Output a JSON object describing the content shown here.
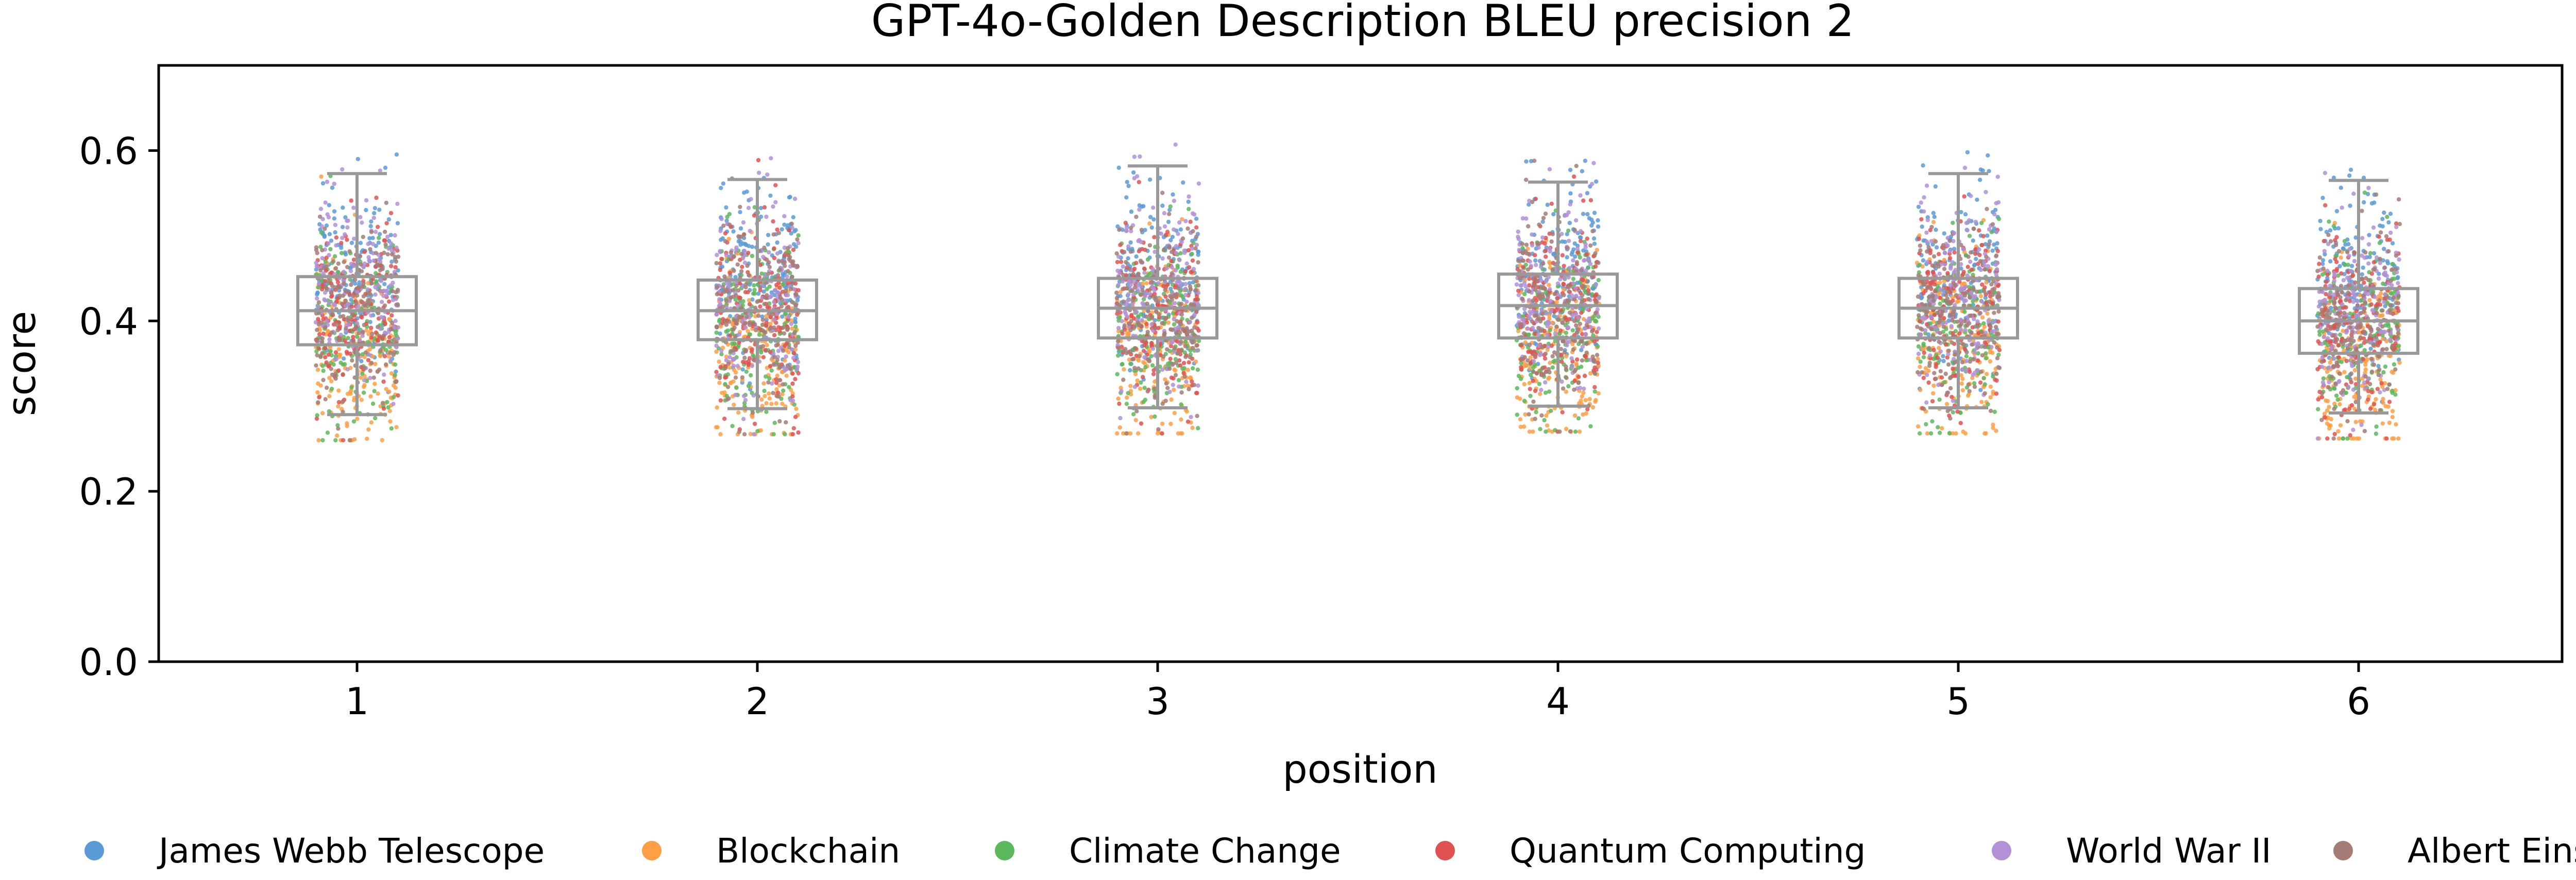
{
  "chart_data": {
    "type": "box-strip",
    "title": "GPT-4o-Golden Description BLEU precision 2",
    "xlabel": "position",
    "ylabel": "score",
    "categories": [
      "1",
      "2",
      "3",
      "4",
      "5",
      "6"
    ],
    "ylim": [
      0,
      0.7
    ],
    "yticks": [
      0.0,
      0.2,
      0.4,
      0.6
    ],
    "ytick_labels": [
      "0.0",
      "0.2",
      "0.4",
      "0.6"
    ],
    "grid": false,
    "legend_position": "bottom",
    "boxes": [
      {
        "category": "1",
        "whisker_low": 0.29,
        "q1": 0.372,
        "median": 0.412,
        "q3": 0.452,
        "whisker_high": 0.573
      },
      {
        "category": "2",
        "whisker_low": 0.297,
        "q1": 0.378,
        "median": 0.412,
        "q3": 0.448,
        "whisker_high": 0.566
      },
      {
        "category": "3",
        "whisker_low": 0.298,
        "q1": 0.38,
        "median": 0.415,
        "q3": 0.45,
        "whisker_high": 0.582
      },
      {
        "category": "4",
        "whisker_low": 0.3,
        "q1": 0.38,
        "median": 0.418,
        "q3": 0.455,
        "whisker_high": 0.563
      },
      {
        "category": "5",
        "whisker_low": 0.298,
        "q1": 0.38,
        "median": 0.415,
        "q3": 0.45,
        "whisker_high": 0.573
      },
      {
        "category": "6",
        "whisker_low": 0.292,
        "q1": 0.362,
        "median": 0.4,
        "q3": 0.438,
        "whisker_high": 0.565
      }
    ],
    "series": [
      {
        "name": "James Webb Telescope",
        "color": "#5b9bd5",
        "center": 0.45
      },
      {
        "name": "Blockchain",
        "color": "#ff9f45",
        "center": 0.36
      },
      {
        "name": "Climate Change",
        "color": "#5cb85c",
        "center": 0.39
      },
      {
        "name": "Quantum Computing",
        "color": "#e05252",
        "center": 0.41
      },
      {
        "name": "World War II",
        "color": "#b291d6",
        "center": 0.43
      },
      {
        "name": "Albert Einstein",
        "color": "#a57c75",
        "center": 0.41
      }
    ],
    "box_color": "#999999"
  }
}
